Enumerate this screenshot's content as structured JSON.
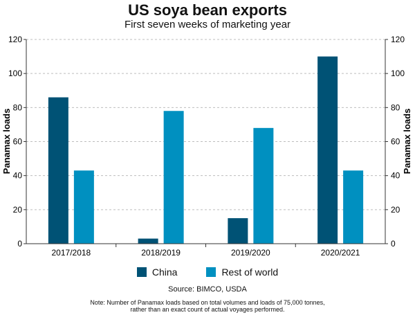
{
  "chart_data": {
    "type": "bar",
    "title": "US soya bean exports",
    "subtitle": "First seven weeks of marketing year",
    "ylabel": "Panamax loads",
    "ylabel_right": "Panamax loads",
    "ylim": [
      0,
      120
    ],
    "yticks": [
      0,
      20,
      40,
      60,
      80,
      100,
      120
    ],
    "grid": true,
    "categories": [
      "2017/2018",
      "2018/2019",
      "2019/2020",
      "2020/2021"
    ],
    "series": [
      {
        "name": "China",
        "color": "#005275",
        "values": [
          86,
          3,
          15,
          110
        ]
      },
      {
        "name": "Rest of world",
        "color": "#0090c0",
        "values": [
          43,
          78,
          68,
          43
        ]
      }
    ],
    "legend_position": "bottom"
  },
  "source": "Source: BIMCO, USDA",
  "note_line1": "Note: Number of Panamax loads based on total volumes and loads of 75,000 tonnes,",
  "note_line2": "rather than an exact count of actual voyages performed."
}
